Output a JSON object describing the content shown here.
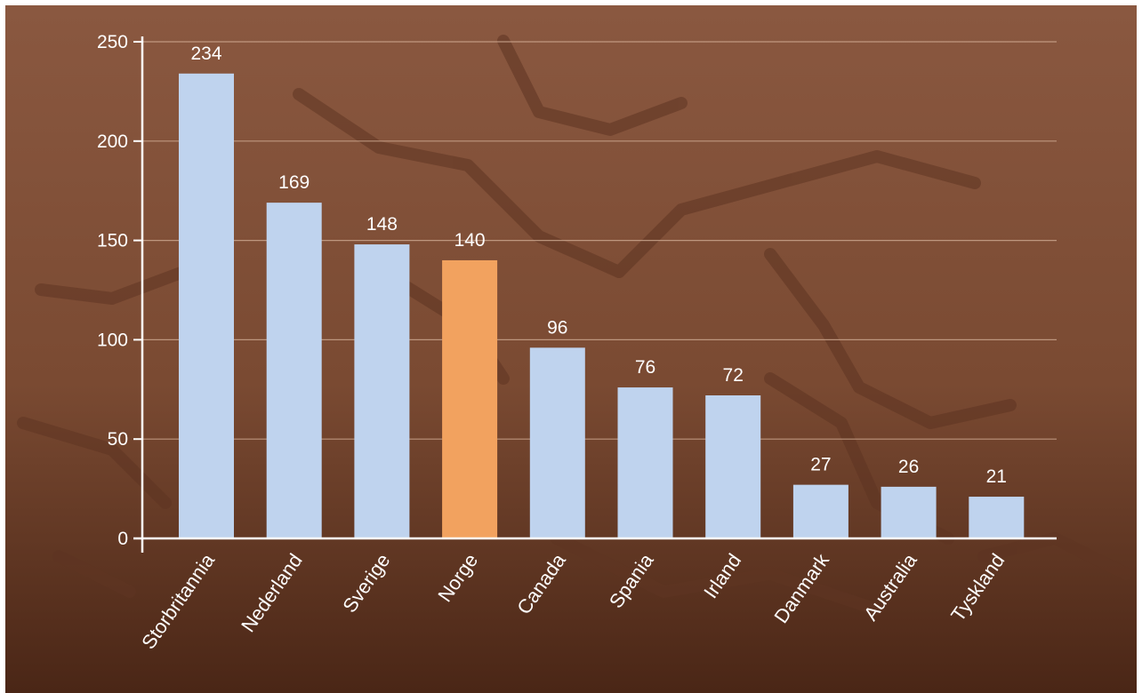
{
  "chart_data": {
    "type": "bar",
    "title": "",
    "xlabel": "",
    "ylabel": "",
    "categories": [
      "Storbritannia",
      "Nederland",
      "Sverige",
      "Norge",
      "Canada",
      "Spania",
      "Irland",
      "Danmark",
      "Australia",
      "Tyskland"
    ],
    "values": [
      234,
      169,
      148,
      140,
      96,
      76,
      72,
      27,
      26,
      21
    ],
    "value_labels": [
      "234",
      "169",
      "148",
      "140",
      "96",
      "76",
      "72",
      "27",
      "26",
      "21"
    ],
    "y_ticks": [
      0,
      50,
      100,
      150,
      200,
      250
    ],
    "y_tick_labels": [
      "0",
      "50",
      "100",
      "150",
      "200",
      "250"
    ],
    "ylim": [
      0,
      250
    ],
    "grid": true,
    "highlight_category": "Norge",
    "colors": {
      "bar": "#bfd3ee",
      "highlight": "#f2a25f",
      "axis": "#ffffff",
      "gridline": "#c9a48c",
      "background": "#7a4a33",
      "text": "#ffffff"
    }
  }
}
